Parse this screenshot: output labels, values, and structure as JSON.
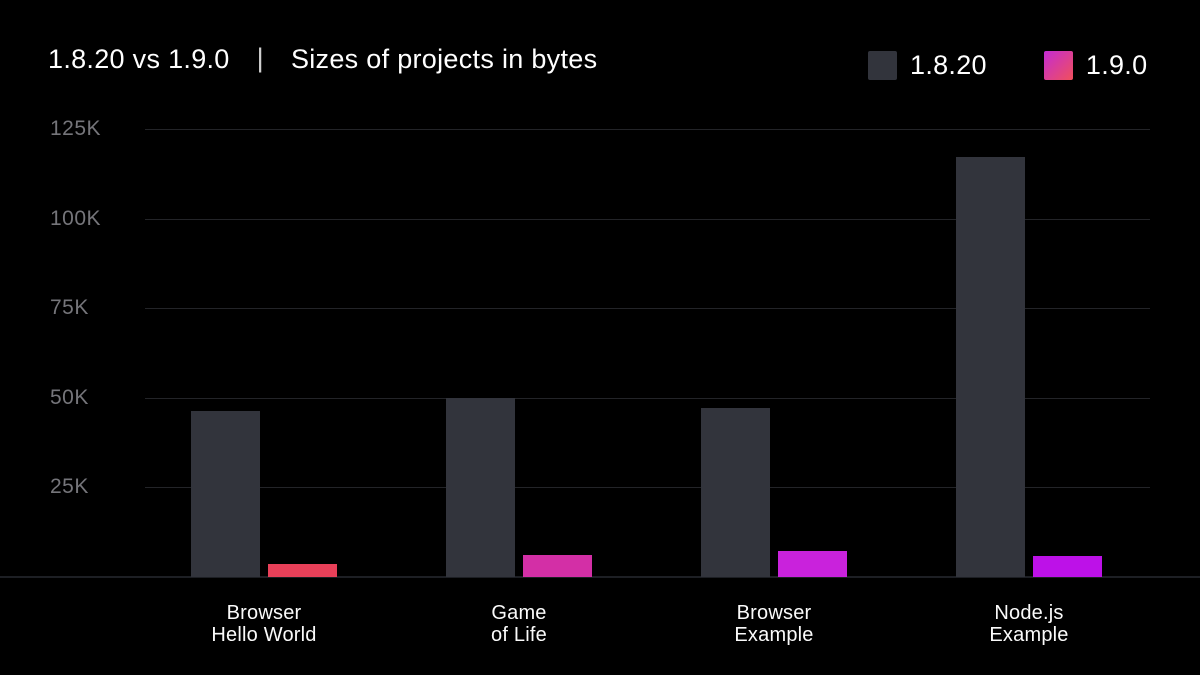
{
  "header": {
    "title": "1.8.20 vs 1.9.0",
    "separator": "|",
    "subtitle": "Sizes of projects in bytes"
  },
  "chart_data": {
    "type": "bar",
    "title": "1.8.20 vs 1.9.0",
    "subtitle": "Sizes of projects in bytes",
    "categories": [
      [
        "Browser",
        "Hello World"
      ],
      [
        "Game",
        "of Life"
      ],
      [
        "Browser",
        "Example"
      ],
      [
        "Node.js",
        "Example"
      ]
    ],
    "series": [
      {
        "name": "1.8.20",
        "color": "#32343c",
        "values": [
          46300,
          49900,
          47200,
          117200
        ]
      },
      {
        "name": "1.9.0",
        "colors": [
          "#e84059",
          "#d32fa6",
          "#c922dc",
          "#bd11e8"
        ],
        "legend_gradient": [
          "#c42bd4",
          "#f0505c"
        ],
        "values": [
          3600,
          6100,
          7300,
          5900
        ]
      }
    ],
    "ylabel_unit": "bytes",
    "ylim": [
      0,
      130000
    ],
    "yticks": [
      25000,
      50000,
      75000,
      100000,
      125000
    ],
    "ytick_labels": [
      "25K",
      "50K",
      "75K",
      "100K",
      "125K"
    ],
    "grid": true,
    "legend_position": "top-right",
    "background": "#000000",
    "gridline_color": "#232428",
    "axis_line_color": "#1d1f24",
    "tick_label_color": "#75757a",
    "category_label_color": "#fafafa"
  }
}
